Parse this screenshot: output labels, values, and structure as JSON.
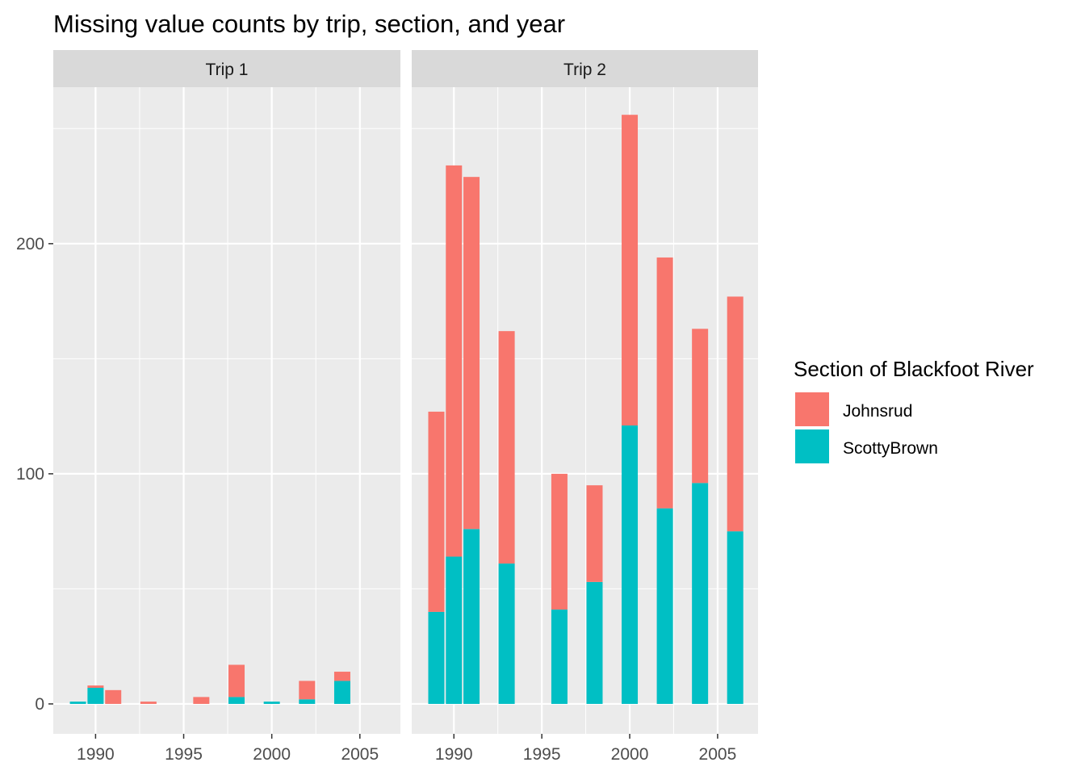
{
  "chart_data": {
    "type": "bar",
    "stacked": true,
    "title": "Missing value counts by trip, section, and year",
    "xlabel": "",
    "ylabel": "",
    "xlim": [
      1987.6,
      2007.3
    ],
    "ylim": [
      -13,
      268
    ],
    "x_ticks": [
      1990,
      1995,
      2000,
      2005
    ],
    "y_ticks": [
      0,
      100,
      200
    ],
    "grid": true,
    "legend": {
      "title": "Section of Blackfoot River",
      "position": "right",
      "items": [
        {
          "name": "Johnsrud",
          "color": "#F8766D"
        },
        {
          "name": "ScottyBrown",
          "color": "#00BFC4"
        }
      ]
    },
    "facets": [
      {
        "label": "Trip 1",
        "x": [
          1989,
          1990,
          1991,
          1993,
          1996,
          1998,
          2000,
          2002,
          2004
        ],
        "series": [
          {
            "name": "ScottyBrown",
            "color": "#00BFC4",
            "values": [
              1,
              7,
              0,
              0,
              0,
              3,
              1,
              2,
              10
            ]
          },
          {
            "name": "Johnsrud",
            "color": "#F8766D",
            "values": [
              0,
              1,
              6,
              1,
              3,
              14,
              0,
              8,
              4
            ]
          }
        ]
      },
      {
        "label": "Trip 2",
        "x": [
          1989,
          1990,
          1991,
          1993,
          1996,
          1998,
          2000,
          2002,
          2004,
          2006
        ],
        "series": [
          {
            "name": "ScottyBrown",
            "color": "#00BFC4",
            "values": [
              40,
              64,
              76,
              61,
              41,
              53,
              121,
              85,
              96,
              75
            ]
          },
          {
            "name": "Johnsrud",
            "color": "#F8766D",
            "values": [
              87,
              170,
              153,
              101,
              59,
              42,
              135,
              109,
              67,
              102
            ]
          }
        ]
      }
    ]
  }
}
